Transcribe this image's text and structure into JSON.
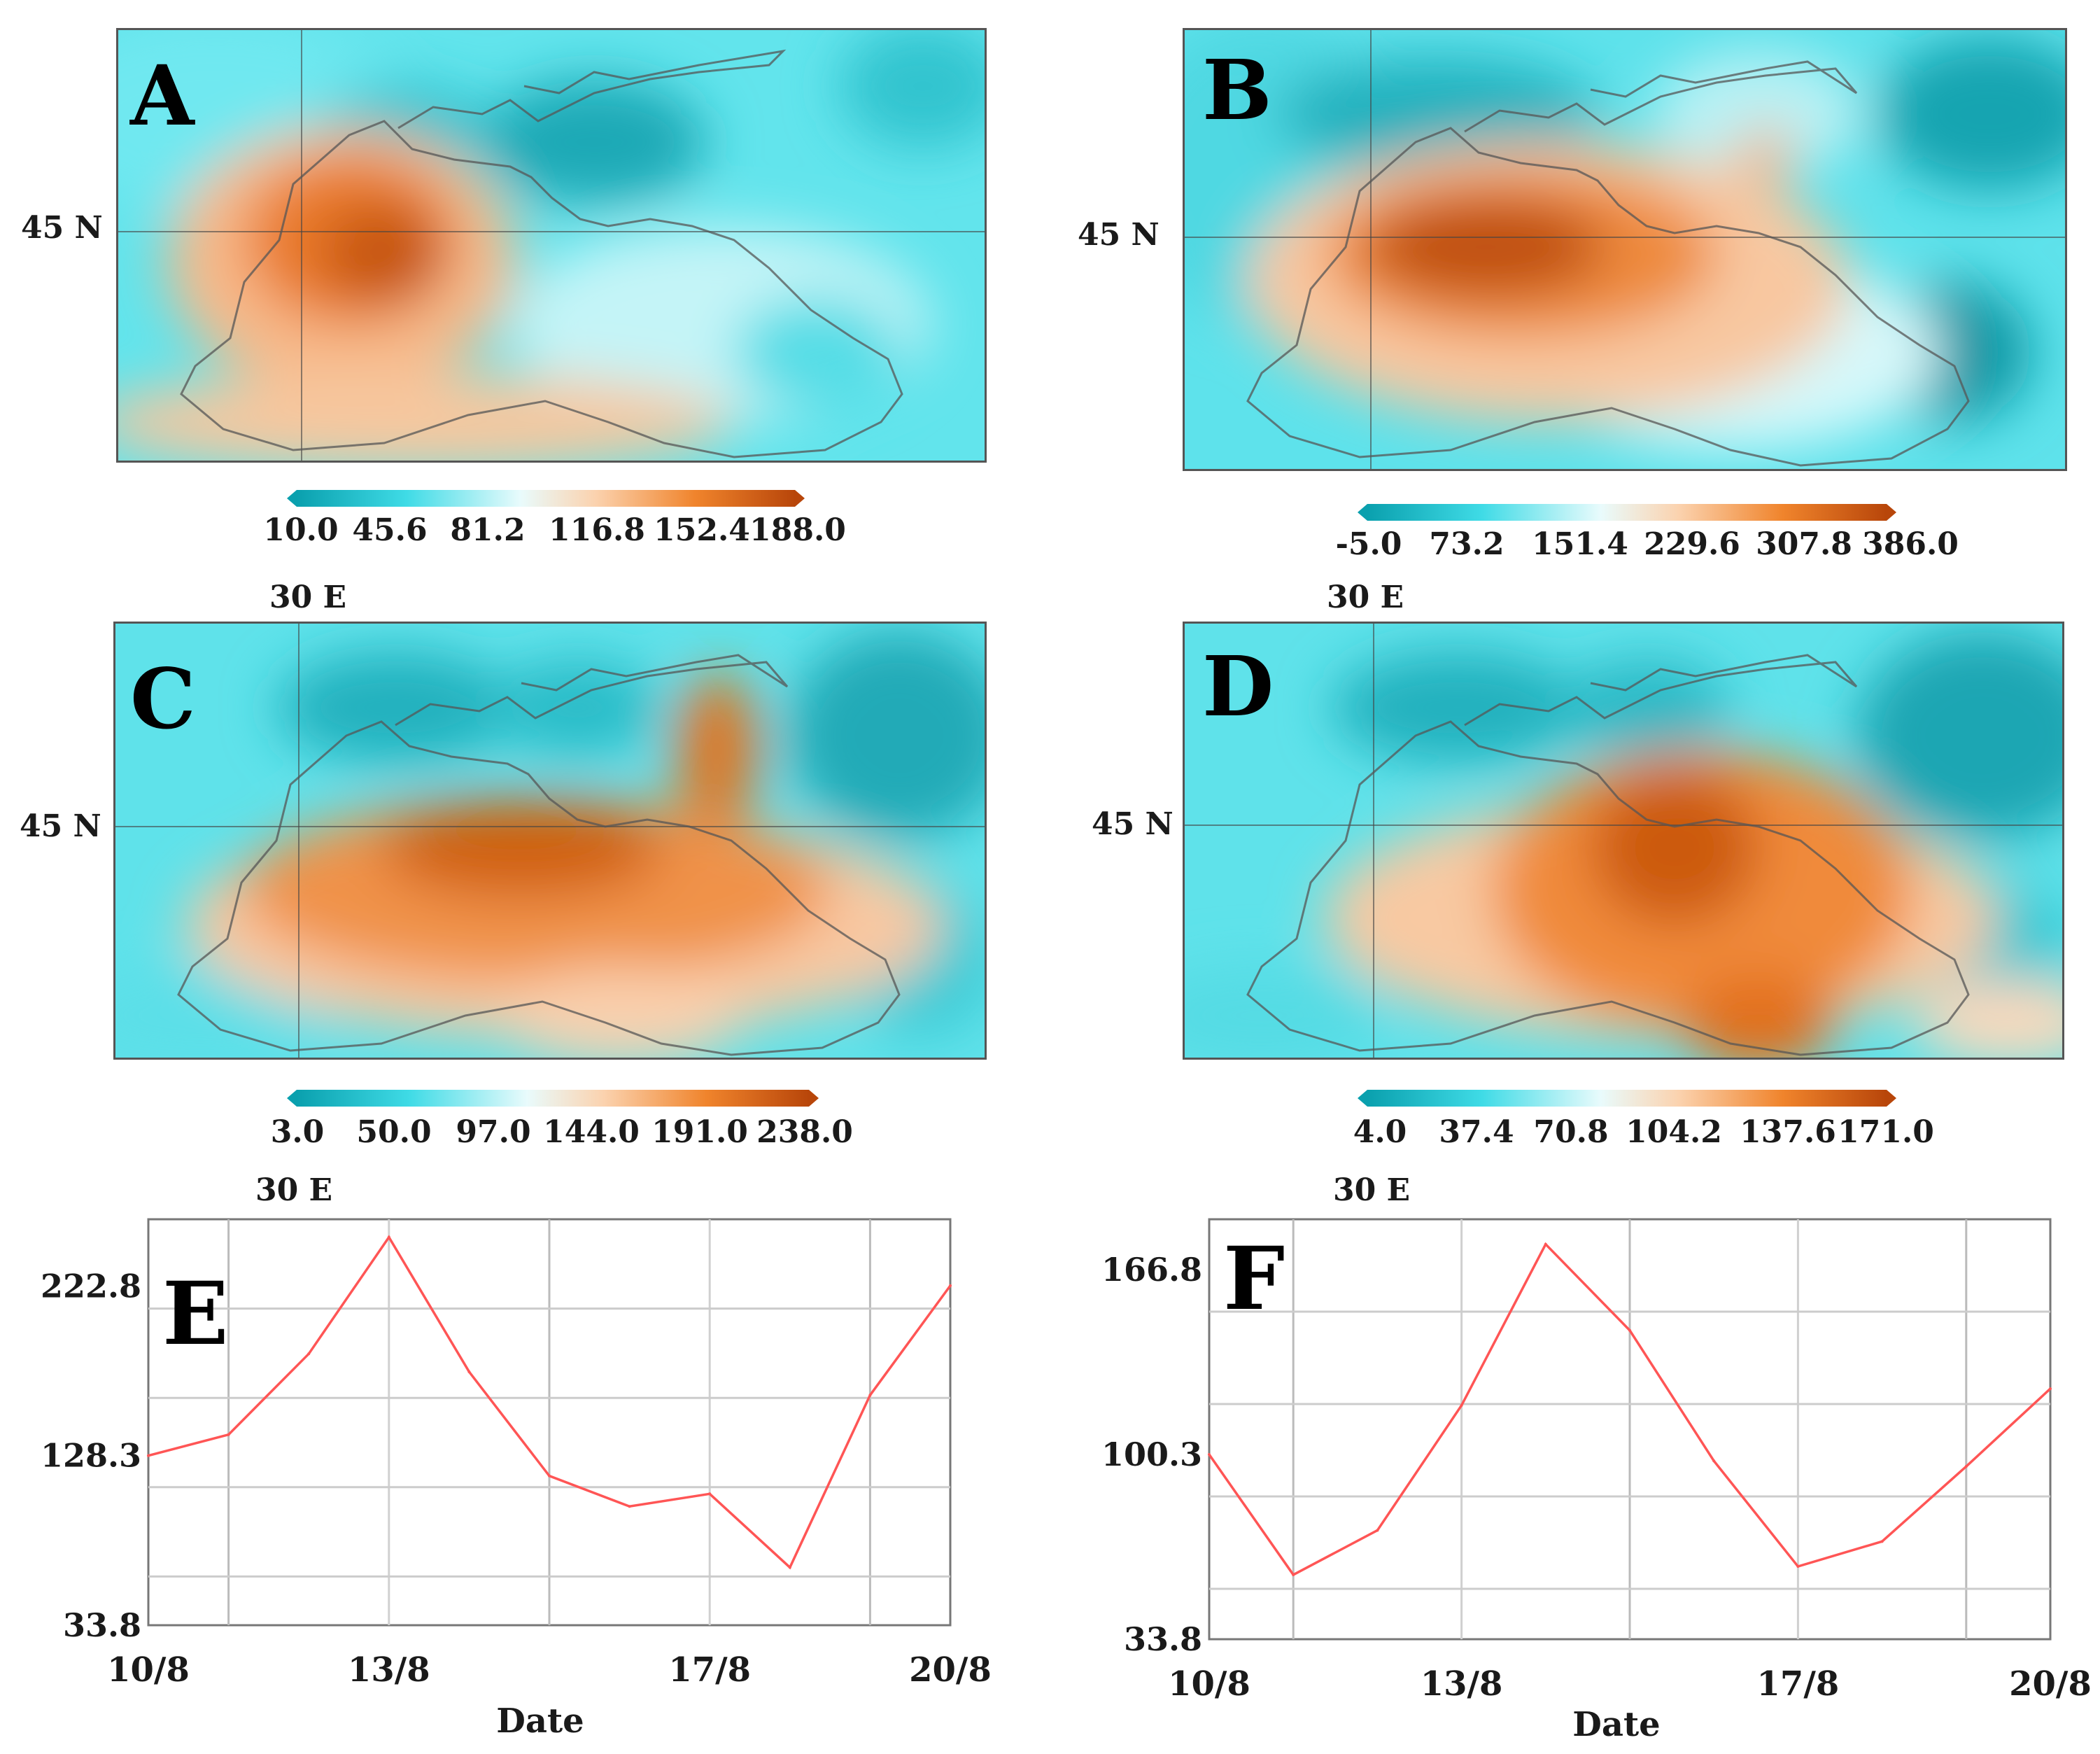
{
  "figure": {
    "axis_labels": {
      "lat": "45 N",
      "lon": "30 E",
      "date": "Date"
    },
    "colors": {
      "low": "#0aa5b4",
      "mid": "#e9fbfc",
      "high": "#c2500a",
      "line": "#ff5555",
      "coast": "#555555"
    }
  },
  "panels": [
    {
      "id": "A",
      "letter": "A",
      "colorbar": [
        "10.0",
        "45.6",
        "81.2",
        "116.8",
        "152.4",
        "188.0"
      ]
    },
    {
      "id": "B",
      "letter": "B",
      "colorbar": [
        "-5.0",
        "73.2",
        "151.4",
        "229.6",
        "307.8",
        "386.0"
      ]
    },
    {
      "id": "C",
      "letter": "C",
      "colorbar": [
        "3.0",
        "50.0",
        "97.0",
        "144.0",
        "191.0",
        "238.0"
      ]
    },
    {
      "id": "D",
      "letter": "D",
      "colorbar": [
        "4.0",
        "37.4",
        "70.8",
        "104.2",
        "137.6",
        "171.0"
      ]
    }
  ],
  "chart_data": [
    {
      "type": "line",
      "panel": "E",
      "xlabel": "Date",
      "ylabel": "",
      "x_tick_labels": [
        "10/8",
        "13/8",
        "17/8",
        "20/8"
      ],
      "y_tick_labels": [
        "33.8",
        "128.3",
        "222.8"
      ],
      "x": [
        10,
        11,
        12,
        13,
        14,
        15,
        16,
        17,
        18,
        19,
        20
      ],
      "series": [
        {
          "name": "E",
          "values": [
            128.3,
            140,
            185,
            250,
            175,
            117,
            100,
            107,
            66,
            162,
            223
          ]
        }
      ],
      "ylim": [
        33.8,
        260
      ]
    },
    {
      "type": "line",
      "panel": "F",
      "xlabel": "Date",
      "ylabel": "",
      "x_tick_labels": [
        "10/8",
        "13/8",
        "17/8",
        "20/8"
      ],
      "y_tick_labels": [
        "33.8",
        "100.3",
        "166.8"
      ],
      "x": [
        10,
        11,
        12,
        13,
        14,
        15,
        16,
        17,
        18,
        19,
        20
      ],
      "series": [
        {
          "name": "F",
          "values": [
            100.3,
            57,
            73,
            118,
            176,
            145,
            98,
            60,
            69,
            96,
            124
          ]
        }
      ],
      "ylim": [
        33.8,
        185
      ]
    }
  ]
}
